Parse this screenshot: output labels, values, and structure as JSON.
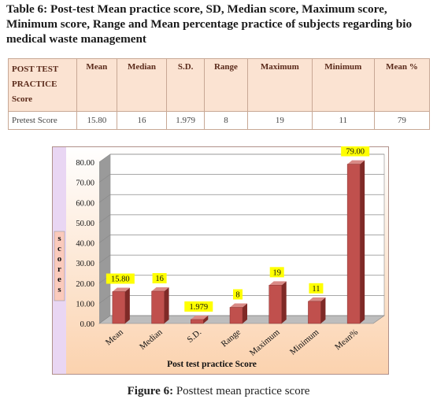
{
  "table_title": "Table 6: Post-test Mean practice score, SD, Median score, Maximum score, Minimum score, Range and Mean percentage practice of subjects regarding bio medical waste management",
  "table": {
    "headers": [
      "POST TEST PRACTICE Score",
      "Mean",
      "Median",
      "S.D.",
      "Range",
      "Maximum",
      "Minimum",
      "Mean %"
    ],
    "rows": [
      [
        "Pretest Score",
        "15.80",
        "16",
        "1.979",
        "8",
        "19",
        "11",
        "79"
      ]
    ]
  },
  "chart_data": {
    "type": "bar",
    "categories": [
      "Mean",
      "Median",
      "S.D.",
      "Range",
      "Maximum",
      "Minimum",
      "Mean%"
    ],
    "values": [
      15.8,
      16,
      1.979,
      8,
      19,
      11,
      79
    ],
    "data_labels": [
      "15.80",
      "16",
      "1.979",
      "8",
      "19",
      "11",
      "79.00"
    ],
    "xlabel": "Post test practice Score",
    "ylabel": "scores",
    "ylim": [
      0,
      80
    ],
    "yticks": [
      "0.00",
      "10.00",
      "20.00",
      "30.00",
      "40.00",
      "50.00",
      "60.00",
      "70.00",
      "80.00"
    ],
    "grid": true,
    "colors": {
      "bar": "#c0504d",
      "bar_dark": "#7f2a27",
      "label_bg": "#ffff00",
      "plot_bg": "#fbd5b5",
      "left_band": "#e9d6f3"
    }
  },
  "figure_caption": {
    "label": "Figure 6:",
    "text": "Posttest mean practice score"
  }
}
